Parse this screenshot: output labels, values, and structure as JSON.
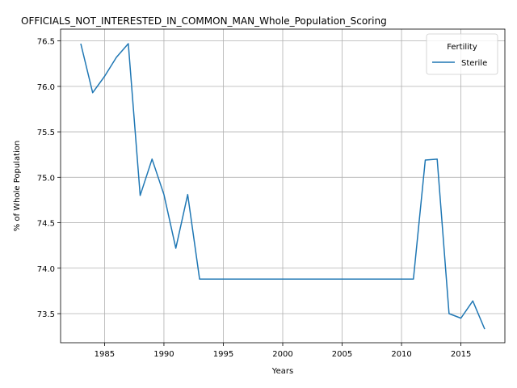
{
  "chart_data": {
    "type": "line",
    "title": "OFFICIALS_NOT_INTERESTED_IN_COMMON_MAN_Whole_Population_Scoring",
    "xlabel": "Years",
    "ylabel": "% of Whole Population",
    "xlim": [
      1981.3,
      2018.7
    ],
    "ylim": [
      73.18,
      76.63
    ],
    "xticks": [
      1985,
      1990,
      1995,
      2000,
      2005,
      2010,
      2015
    ],
    "yticks": [
      73.5,
      74.0,
      74.5,
      75.0,
      75.5,
      76.0,
      76.5
    ],
    "ytick_labels": [
      "73.5",
      "74.0",
      "74.5",
      "75.0",
      "75.5",
      "76.0",
      "76.5"
    ],
    "grid": true,
    "legend": {
      "title": "Fertility",
      "position": "upper right"
    },
    "series": [
      {
        "name": "Sterile",
        "color": "#1f77b4",
        "x": [
          1983,
          1984,
          1985,
          1986,
          1987,
          1988,
          1989,
          1990,
          1991,
          1992,
          1993,
          1994,
          1995,
          1996,
          1997,
          1998,
          1999,
          2000,
          2001,
          2002,
          2003,
          2004,
          2005,
          2006,
          2007,
          2008,
          2009,
          2010,
          2011,
          2012,
          2013,
          2014,
          2015,
          2016,
          2017
        ],
        "y": [
          76.47,
          75.93,
          76.11,
          76.32,
          76.47,
          74.8,
          75.2,
          74.81,
          74.22,
          74.81,
          73.88,
          73.88,
          73.88,
          73.88,
          73.88,
          73.88,
          73.88,
          73.88,
          73.88,
          73.88,
          73.88,
          73.88,
          73.88,
          73.88,
          73.88,
          73.88,
          73.88,
          73.88,
          73.88,
          75.19,
          75.2,
          73.5,
          73.45,
          73.64,
          73.33
        ]
      }
    ]
  }
}
